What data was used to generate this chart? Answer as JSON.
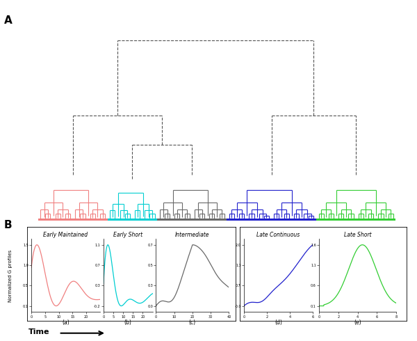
{
  "panel_A_label": "A",
  "panel_B_label": "B",
  "background_color": "#ffffff",
  "colors": {
    "early_maintained": "#F08080",
    "early_short": "#00CED1",
    "intermediate": "#696969",
    "late_continuous": "#2020CC",
    "late_short": "#32CD32",
    "dashed": "#555555"
  },
  "cluster_n": [
    14,
    10,
    14,
    18,
    16
  ],
  "subplot_titles": [
    "Early Maintained",
    "Early Short",
    "Intermediate",
    "Late Continuous",
    "Late Short"
  ],
  "subplot_labels": [
    "(a)",
    "(b)",
    "(c)",
    "(d)",
    "(e)"
  ],
  "ylabel": "Normalized G profiles",
  "time_label": "Time"
}
